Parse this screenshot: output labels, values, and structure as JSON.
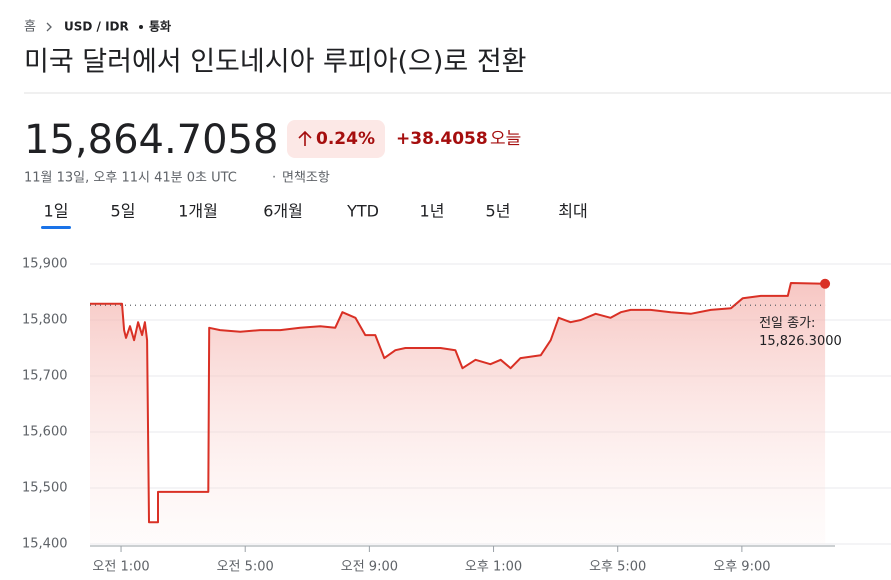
{
  "breadcrumb": {
    "home": "홈",
    "pair": "USD / IDR",
    "section": "통화"
  },
  "title": "미국 달러에서 인도네시아 루피아(으)로 전환",
  "price": "15,864.7058",
  "change_percent": "0.24%",
  "change_amount": "+38.4058",
  "change_period": "오늘",
  "timestamp": "11월 13일, 오후 11시 41분 0초 UTC",
  "disclaimer": "면책조항",
  "tabs": [
    "1일",
    "5일",
    "1개월",
    "6개월",
    "YTD",
    "1년",
    "5년",
    "최대"
  ],
  "selected_tab": 0,
  "chart_data": {
    "type": "line",
    "x": [
      0,
      1.03,
      1.1,
      1.16,
      1.29,
      1.42,
      1.55,
      1.68,
      1.77,
      1.84,
      1.9,
      2.19,
      2.19,
      3.81,
      3.84,
      4.19,
      4.84,
      5.48,
      6.13,
      6.77,
      7.42,
      7.9,
      8.13,
      8.55,
      8.87,
      9.19,
      9.48,
      9.84,
      10.16,
      10.65,
      11.29,
      11.77,
      12.0,
      12.42,
      12.9,
      13.23,
      13.55,
      13.87,
      14.52,
      14.84,
      15.1,
      15.48,
      15.81,
      16.29,
      16.77,
      17.1,
      17.42,
      18.06,
      18.71,
      19.35,
      20.0,
      20.65,
      21.03,
      21.61,
      22.48,
      22.58,
      23.68
    ],
    "series": [
      {
        "color": "#d93025",
        "values": [
          15829,
          15829,
          15782,
          15768,
          15789,
          15764,
          15796,
          15773,
          15796,
          15764,
          15439,
          15439,
          15493,
          15493,
          15786,
          15782,
          15779,
          15782,
          15782,
          15786,
          15789,
          15786,
          15814,
          15804,
          15773,
          15773,
          15732,
          15746,
          15750,
          15750,
          15750,
          15746,
          15714,
          15729,
          15721,
          15729,
          15714,
          15732,
          15737,
          15764,
          15804,
          15796,
          15800,
          15811,
          15804,
          15814,
          15818,
          15818,
          15814,
          15811,
          15818,
          15821,
          15839,
          15843,
          15843,
          15866,
          15864.7
        ]
      }
    ],
    "xlim": [
      0,
      24
    ],
    "ylim": [
      15400,
      15900
    ],
    "yticks": [
      {
        "value": 15400,
        "label": "15,400"
      },
      {
        "value": 15500,
        "label": "15,500"
      },
      {
        "value": 15600,
        "label": "15,600"
      },
      {
        "value": 15700,
        "label": "15,700"
      },
      {
        "value": 15800,
        "label": "15,800"
      },
      {
        "value": 15900,
        "label": "15,900"
      }
    ],
    "xticks": [
      {
        "value": 1,
        "label": "오전 1:00"
      },
      {
        "value": 5,
        "label": "오전 5:00"
      },
      {
        "value": 9,
        "label": "오전 9:00"
      },
      {
        "value": 13,
        "label": "오후 1:00"
      },
      {
        "value": 17,
        "label": "오후 5:00"
      },
      {
        "value": 21,
        "label": "오후 9:00"
      }
    ],
    "grid": true,
    "previous_close": {
      "label": "전일 종가:",
      "value": 15826.3,
      "value_label": "15,826.3000"
    }
  }
}
